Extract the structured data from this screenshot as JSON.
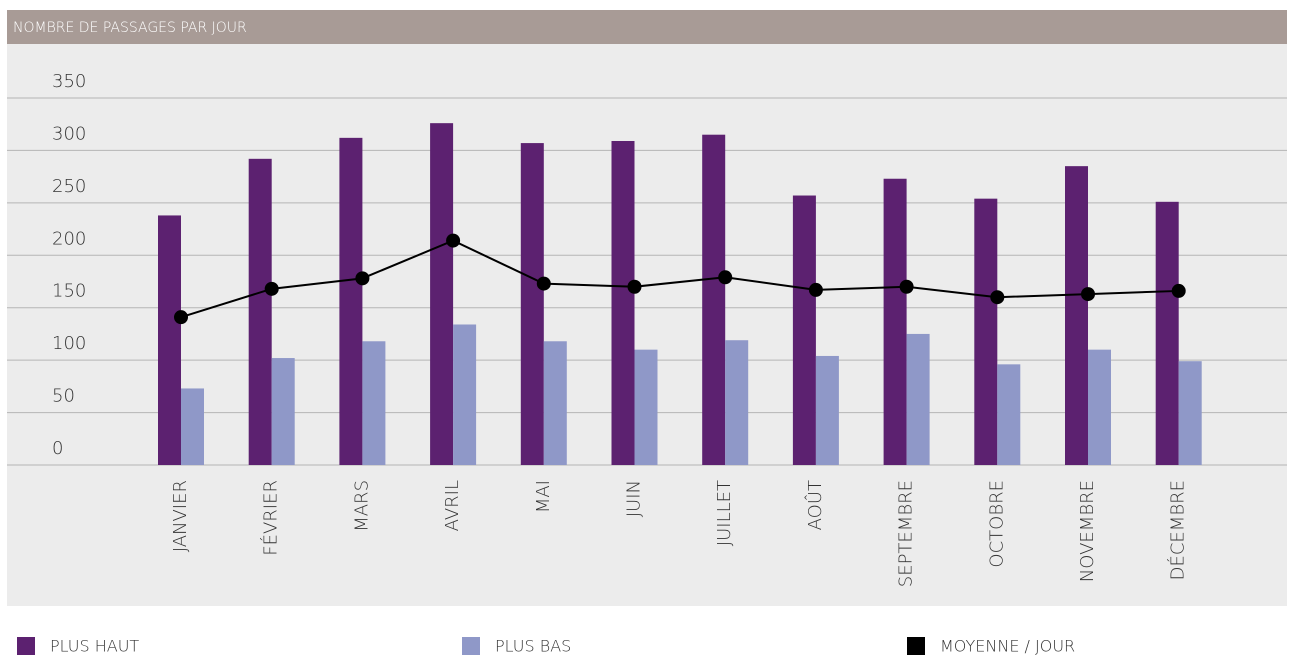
{
  "chart_data": {
    "type": "bar_line",
    "title": "NOMBRE DE PASSAGES PAR JOUR",
    "categories": [
      "JANVIER",
      "FÉVRIER",
      "MARS",
      "AVRIL",
      "MAI",
      "JUIN",
      "JUILLET",
      "AOÛT",
      "SEPTEMBRE",
      "OCTOBRE",
      "NOVEMBRE",
      "DÉCEMBRE"
    ],
    "series": [
      {
        "name": "PLUS HAUT",
        "color": "#5c2170",
        "kind": "bar",
        "values": [
          238,
          292,
          312,
          326,
          307,
          309,
          315,
          257,
          273,
          254,
          285,
          251
        ]
      },
      {
        "name": "PLUS BAS",
        "color": "#8f98c8",
        "kind": "bar",
        "values": [
          73,
          102,
          118,
          134,
          118,
          110,
          119,
          104,
          125,
          96,
          110,
          99
        ]
      },
      {
        "name": "MOYENNE / JOUR",
        "color": "#000000",
        "kind": "line",
        "values": [
          141,
          168,
          178,
          214,
          173,
          170,
          179,
          167,
          170,
          160,
          163,
          166
        ]
      }
    ],
    "ylim": [
      0,
      350
    ],
    "yticks": [
      0,
      50,
      100,
      150,
      200,
      250,
      300,
      350
    ],
    "grid": true
  }
}
